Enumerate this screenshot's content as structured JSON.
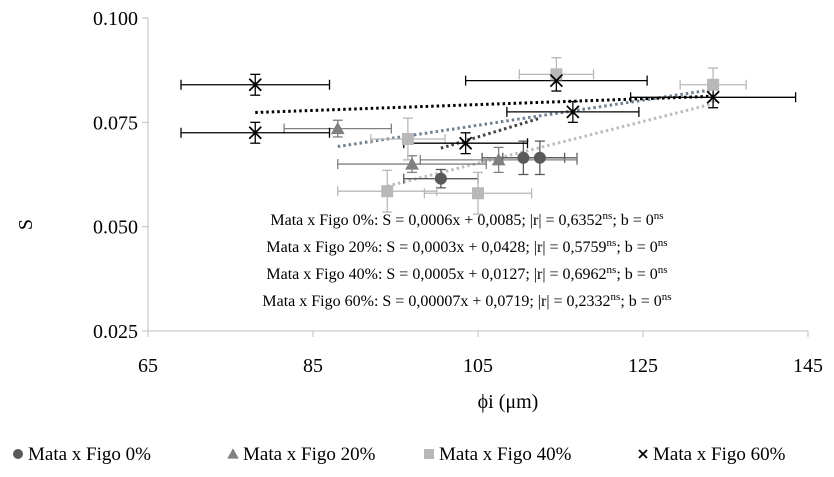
{
  "chart_data": {
    "type": "scatter",
    "xlabel": "ϕi (μm)",
    "ylabel": "S",
    "xlim": [
      65,
      145
    ],
    "ylim": [
      0.025,
      0.1
    ],
    "x_ticks": [
      "65",
      "85",
      "105",
      "125",
      "145"
    ],
    "y_ticks": [
      "0.025",
      "0.050",
      "0.075",
      "0.100"
    ],
    "grid": false,
    "legend_position": "bottom",
    "series": [
      {
        "name": "Mata x Figo 0%",
        "marker": "circle",
        "color": "#595959",
        "trend_color": "#404040",
        "trend": [
          0.0006,
          0.0085
        ],
        "points": [
          {
            "x": 100.5,
            "y": 0.0615,
            "xerr": 4.5,
            "yerr": 0.0022
          },
          {
            "x": 110.5,
            "y": 0.0665,
            "xerr": 5.0,
            "yerr": 0.004
          },
          {
            "x": 112.5,
            "y": 0.0665,
            "xerr": 4.5,
            "yerr": 0.004
          }
        ],
        "trend_range": [
          100.5,
          112.5
        ]
      },
      {
        "name": "Mata x Figo 20%",
        "marker": "triangle",
        "color": "#808080",
        "trend_color": "#6f7f8f",
        "trend": [
          0.0003,
          0.0428
        ],
        "points": [
          {
            "x": 88.0,
            "y": 0.0735,
            "xerr": 6.5,
            "yerr": 0.002
          },
          {
            "x": 97.0,
            "y": 0.065,
            "xerr": 9.0,
            "yerr": 0.002
          },
          {
            "x": 107.5,
            "y": 0.066,
            "xerr": 9.5,
            "yerr": 0.003
          }
        ],
        "trend_range": [
          88.0,
          133.5
        ]
      },
      {
        "name": "Mata x Figo 40%",
        "marker": "square",
        "color": "#b8b8b8",
        "trend_color": "#bdbdbd",
        "trend": [
          0.0005,
          0.0127
        ],
        "points": [
          {
            "x": 94.0,
            "y": 0.0585,
            "xerr": 6.0,
            "yerr": 0.005
          },
          {
            "x": 96.5,
            "y": 0.071,
            "xerr": 4.5,
            "yerr": 0.005
          },
          {
            "x": 105.0,
            "y": 0.058,
            "xerr": 6.5,
            "yerr": 0.005
          },
          {
            "x": 114.5,
            "y": 0.0865,
            "xerr": 4.5,
            "yerr": 0.004
          },
          {
            "x": 133.5,
            "y": 0.084,
            "xerr": 4.0,
            "yerr": 0.004
          }
        ],
        "trend_range": [
          94.0,
          133.5
        ]
      },
      {
        "name": "Mata x Figo 60%",
        "marker": "x",
        "color": "#000000",
        "trend_color": "#000000",
        "trend": [
          7e-05,
          0.0719
        ],
        "points": [
          {
            "x": 78.0,
            "y": 0.084,
            "xerr": 9.0,
            "yerr": 0.0025
          },
          {
            "x": 78.0,
            "y": 0.0725,
            "xerr": 9.0,
            "yerr": 0.0025
          },
          {
            "x": 103.5,
            "y": 0.07,
            "xerr": 7.5,
            "yerr": 0.0025
          },
          {
            "x": 114.5,
            "y": 0.085,
            "xerr": 11.0,
            "yerr": 0.0025
          },
          {
            "x": 116.5,
            "y": 0.0775,
            "xerr": 8.0,
            "yerr": 0.0025
          },
          {
            "x": 133.5,
            "y": 0.081,
            "xerr": 10.0,
            "yerr": 0.0025
          }
        ],
        "trend_range": [
          78.0,
          133.5
        ]
      }
    ],
    "equations": [
      {
        "main": "Mata x Figo 0%: S = 0,0006x + 0,0085; |r| = 0,6352",
        "sup1": "ns",
        "mid": "; b = 0",
        "sup2": "ns"
      },
      {
        "main": "Mata x Figo 20%: S = 0,0003x + 0,0428; |r| = 0,5759",
        "sup1": "ns",
        "mid": "; b = 0",
        "sup2": "ns"
      },
      {
        "main": "Mata x Figo 40%: S = 0,0005x + 0,0127; |r| = 0,6962",
        "sup1": "ns",
        "mid": "; b = 0",
        "sup2": "ns"
      },
      {
        "main": "Mata x Figo 60%: S = 0,00007x + 0,0719; |r| = 0,2332",
        "sup1": "ns",
        "mid": "; b = 0",
        "sup2": "ns"
      }
    ]
  }
}
